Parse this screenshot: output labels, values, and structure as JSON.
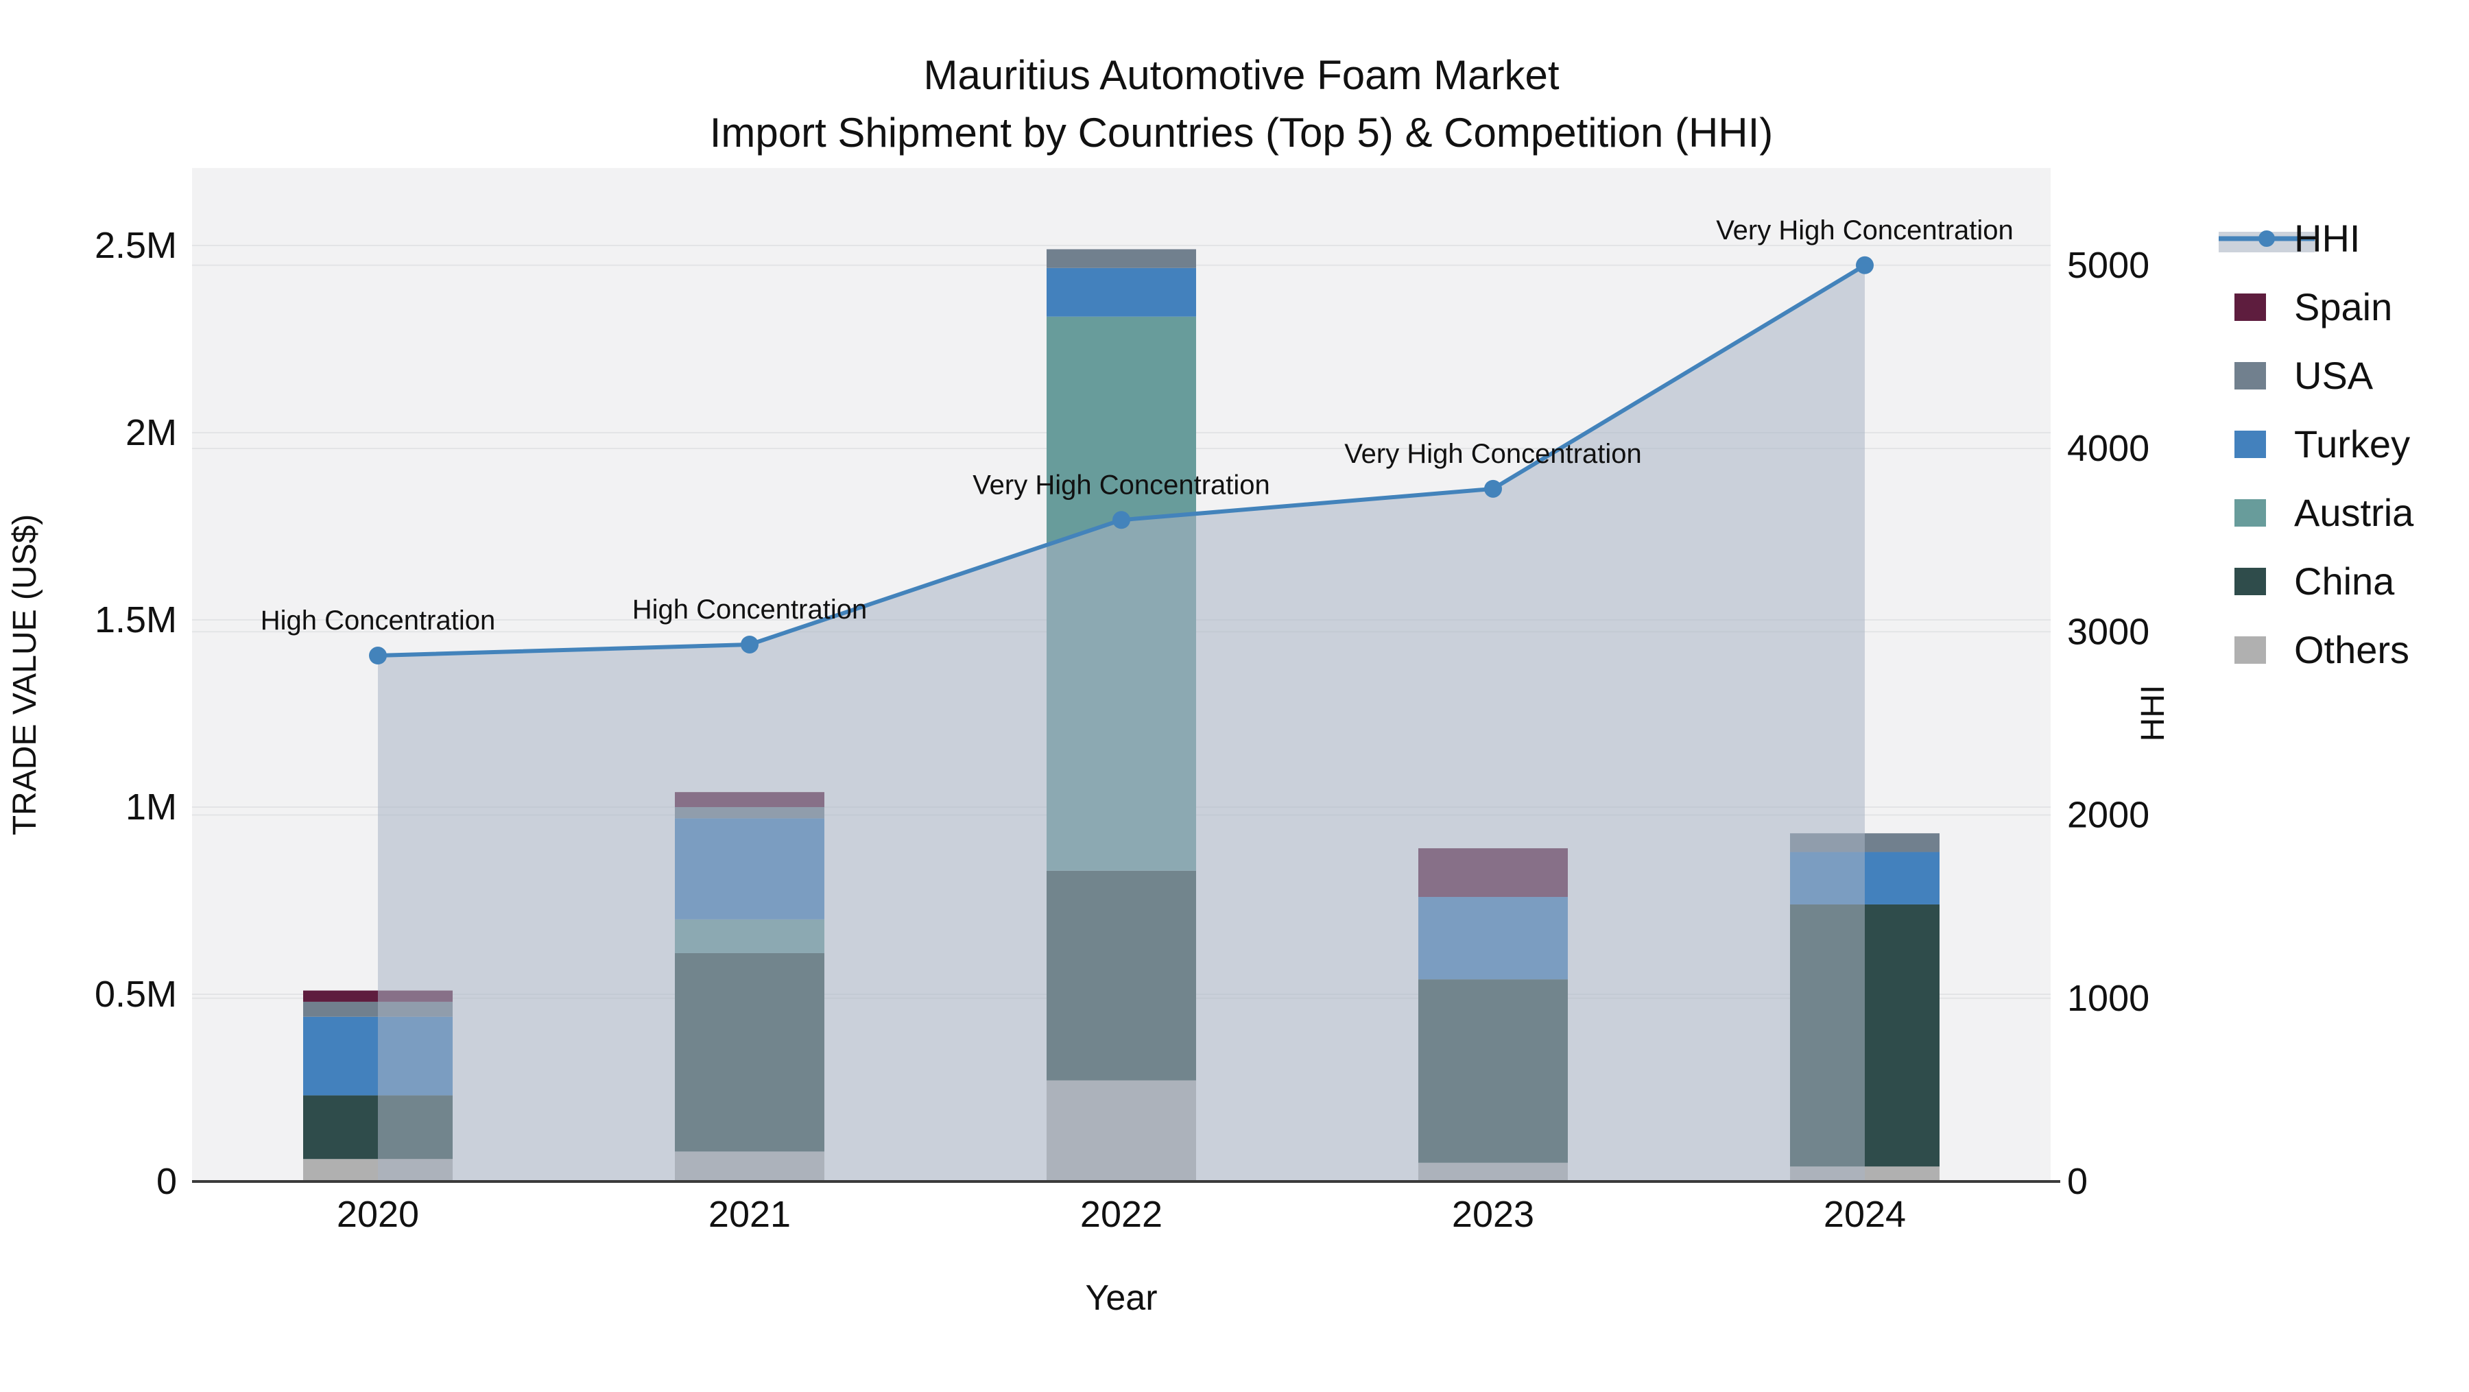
{
  "title": {
    "line1": "Mauritius Automotive Foam Market",
    "line2": "Import Shipment by Countries (Top 5) & Competition (HHI)"
  },
  "chart_data": {
    "type": "bar",
    "subtype": "stacked-bar-with-line-area-overlay",
    "categories": [
      "2020",
      "2021",
      "2022",
      "2023",
      "2024"
    ],
    "xlabel": "Year",
    "series": [
      {
        "name": "Spain",
        "color": "#5e1d3e",
        "values": [
          30000,
          40000,
          0,
          130000,
          0
        ]
      },
      {
        "name": "USA",
        "color": "#71808e",
        "values": [
          40000,
          30000,
          50000,
          0,
          50000
        ]
      },
      {
        "name": "Turkey",
        "color": "#4381bd",
        "values": [
          210000,
          270000,
          130000,
          220000,
          140000
        ]
      },
      {
        "name": "Austria",
        "color": "#689c9b",
        "values": [
          0,
          90000,
          1480000,
          0,
          0
        ]
      },
      {
        "name": "China",
        "color": "#2f4c4b",
        "values": [
          170000,
          530000,
          560000,
          490000,
          700000
        ]
      },
      {
        "name": "Others",
        "color": "#b0b0b0",
        "values": [
          60000,
          80000,
          270000,
          50000,
          40000
        ]
      }
    ],
    "stack_order_bottom_to_top": [
      "Others",
      "China",
      "Austria",
      "Turkey",
      "USA",
      "Spain"
    ],
    "bar_totals": [
      510000,
      1040000,
      2490000,
      890000,
      930000
    ],
    "hhi": {
      "name": "HHI",
      "line_color": "#4383bb",
      "area_fill": "rgba(170,180,197,0.55)",
      "values": [
        2870,
        2930,
        3610,
        3780,
        5000
      ]
    },
    "annotations": [
      "High Concentration",
      "High Concentration",
      "Very High Concentration",
      "Very High Concentration",
      "Very High Concentration"
    ],
    "left_axis": {
      "title": "TRADE VALUE (US$)",
      "range": [
        0,
        2700000
      ],
      "ticks": [
        {
          "label": "0",
          "value": 0
        },
        {
          "label": "0.5M",
          "value": 500000
        },
        {
          "label": "1M",
          "value": 1000000
        },
        {
          "label": "1.5M",
          "value": 1500000
        },
        {
          "label": "2M",
          "value": 2000000
        },
        {
          "label": "2.5M",
          "value": 2500000
        }
      ]
    },
    "right_axis": {
      "title": "HHI",
      "range": [
        0,
        5500
      ],
      "ticks": [
        {
          "label": "0",
          "value": 0
        },
        {
          "label": "1000",
          "value": 1000
        },
        {
          "label": "2000",
          "value": 2000
        },
        {
          "label": "3000",
          "value": 3000
        },
        {
          "label": "4000",
          "value": 4000
        },
        {
          "label": "5000",
          "value": 5000
        }
      ]
    },
    "legend": [
      "HHI",
      "Spain",
      "USA",
      "Turkey",
      "Austria",
      "China",
      "Others"
    ],
    "legend_position": "right",
    "grid": true,
    "plot_bg": "#f2f2f3",
    "grid_color": "#e3e4e6",
    "axis_line_color": "#3b3b3b"
  }
}
